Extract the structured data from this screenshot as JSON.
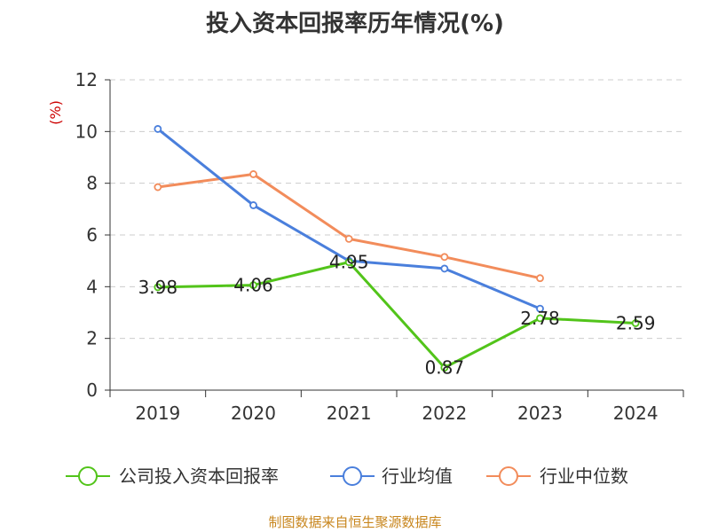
{
  "chart_data": {
    "type": "line",
    "title": "投入资本回报率历年情况(%)",
    "ylabel": "(%)",
    "xlabel": "",
    "categories": [
      "2019",
      "2020",
      "2021",
      "2022",
      "2023",
      "2024"
    ],
    "ylim": [
      0,
      12
    ],
    "yticks": [
      0,
      2,
      4,
      6,
      8,
      10,
      12
    ],
    "grid": true,
    "legend_position": "bottom",
    "series": [
      {
        "name": "公司投入资本回报率",
        "color": "#52c41a",
        "values": [
          3.98,
          4.06,
          4.95,
          0.87,
          2.78,
          2.59
        ],
        "labels": [
          "3.98",
          "4.06",
          "4.95",
          "0.87",
          "2.78",
          "2.59"
        ]
      },
      {
        "name": "行业均值",
        "color": "#4a7fdc",
        "values": [
          10.1,
          7.15,
          5.0,
          4.7,
          3.15,
          null
        ]
      },
      {
        "name": "行业中位数",
        "color": "#f28c5b",
        "values": [
          7.85,
          8.35,
          5.85,
          5.15,
          4.33,
          null
        ]
      }
    ]
  },
  "source_text": "制图数据来自恒生聚源数据库"
}
